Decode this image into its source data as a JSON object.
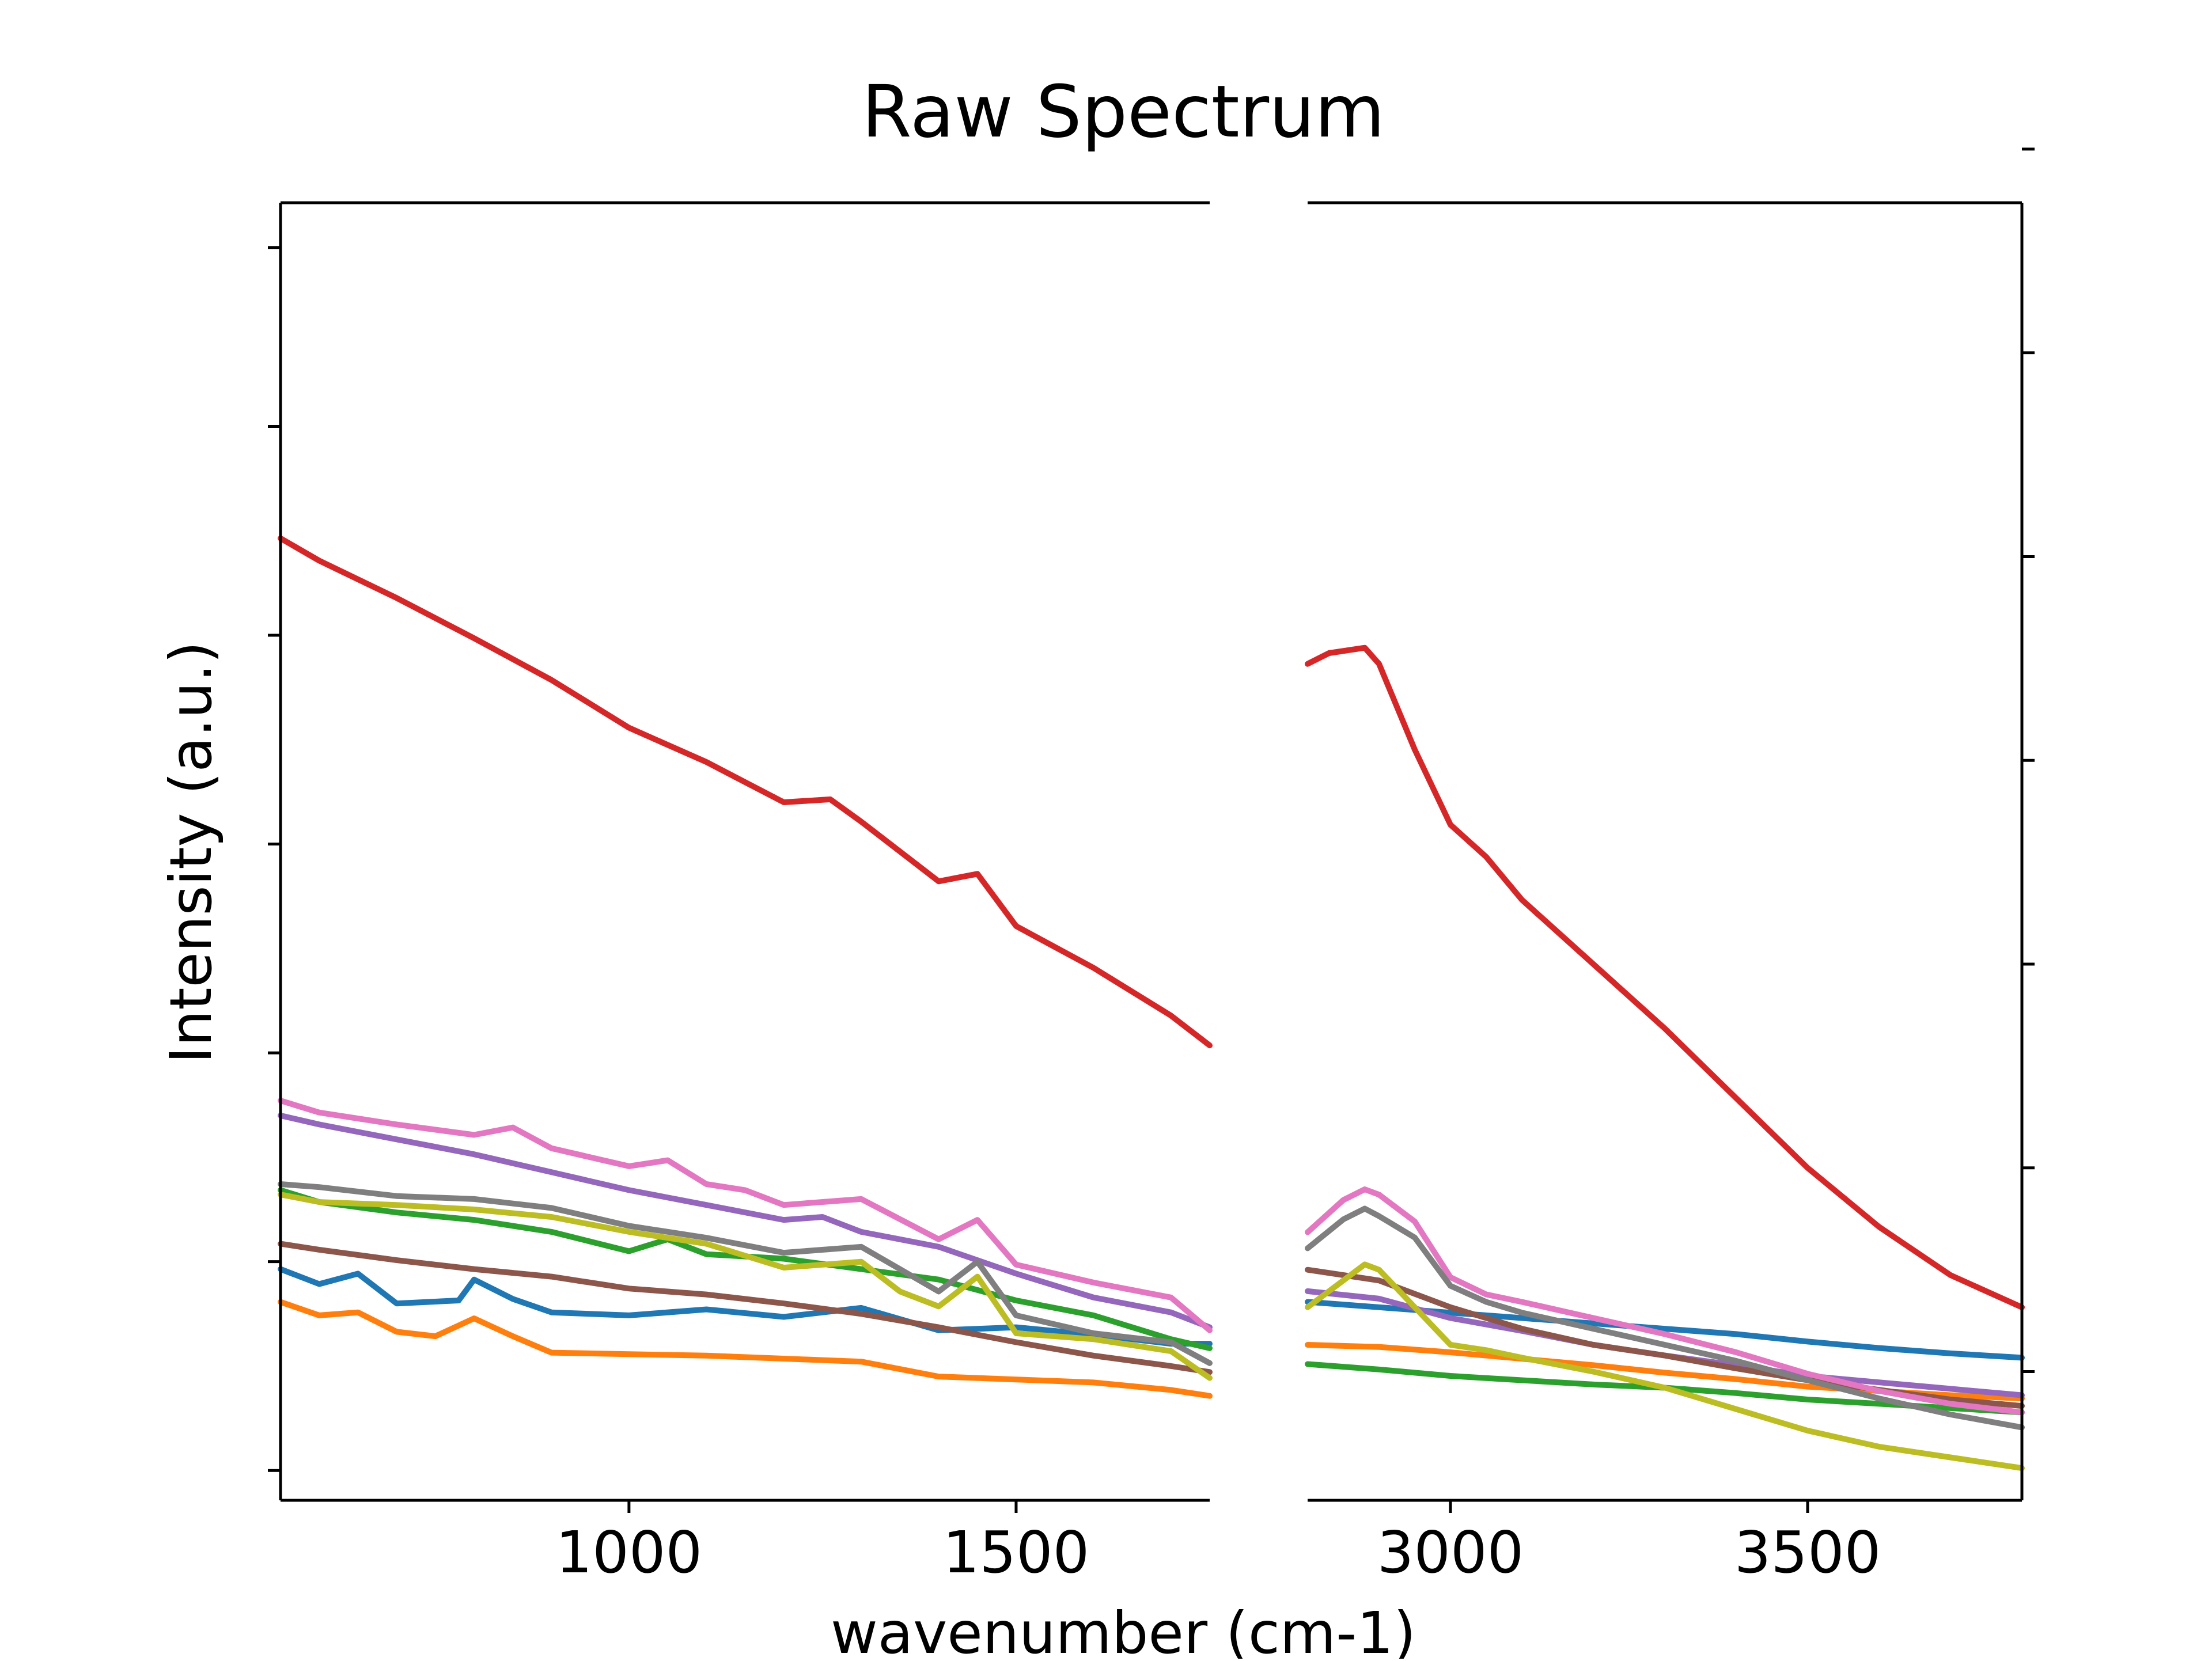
{
  "chart_data": {
    "type": "line",
    "title": "Raw Spectrum",
    "xlabel": "wavenumber (cm-1)",
    "ylabel": "Intensity (a.u.)",
    "grid": false,
    "legend": "none",
    "y_tick_labels_shown": false,
    "panels": [
      {
        "xlim": [
          550,
          1750
        ],
        "xticks": [
          1000,
          1500
        ],
        "ylim": [
          0,
          0.87
        ],
        "yticks": [
          0.02,
          0.16,
          0.3,
          0.44,
          0.58,
          0.72,
          0.84
        ]
      },
      {
        "xlim": [
          2800,
          3800
        ],
        "xticks": [
          3000,
          3500
        ],
        "ylim": [
          0,
          1.21
        ],
        "yticks": [
          0.12,
          0.31,
          0.5,
          0.69,
          0.88,
          1.07,
          1.26
        ]
      }
    ],
    "series": [
      {
        "color": "#1f77b4",
        "x": [
          550,
          600,
          650,
          700,
          780,
          800,
          850,
          900,
          1000,
          1100,
          1200,
          1300,
          1400,
          1500,
          1600,
          1700,
          1750
        ],
        "y": [
          0.155,
          0.145,
          0.152,
          0.132,
          0.134,
          0.148,
          0.135,
          0.126,
          0.124,
          0.128,
          0.123,
          0.129,
          0.114,
          0.116,
          0.111,
          0.105,
          0.105
        ],
        "x2": [
          2800,
          2900,
          3000,
          3100,
          3200,
          3300,
          3400,
          3500,
          3600,
          3700,
          3800
        ],
        "y2": [
          0.185,
          0.18,
          0.175,
          0.17,
          0.165,
          0.16,
          0.155,
          0.148,
          0.142,
          0.137,
          0.133
        ]
      },
      {
        "color": "#ff7f0e",
        "x": [
          550,
          600,
          650,
          700,
          750,
          800,
          850,
          900,
          1000,
          1100,
          1200,
          1300,
          1400,
          1500,
          1600,
          1700,
          1750
        ],
        "y": [
          0.133,
          0.124,
          0.126,
          0.113,
          0.11,
          0.122,
          0.11,
          0.099,
          0.098,
          0.097,
          0.095,
          0.093,
          0.083,
          0.081,
          0.079,
          0.074,
          0.07
        ],
        "x2": [
          2800,
          2900,
          3000,
          3100,
          3200,
          3300,
          3400,
          3500,
          3600,
          3700,
          3800
        ],
        "y2": [
          0.145,
          0.143,
          0.138,
          0.132,
          0.126,
          0.119,
          0.113,
          0.106,
          0.102,
          0.098,
          0.095
        ]
      },
      {
        "color": "#2ca02c",
        "x": [
          550,
          600,
          700,
          800,
          900,
          1000,
          1050,
          1100,
          1200,
          1300,
          1400,
          1500,
          1600,
          1700,
          1750
        ],
        "y": [
          0.208,
          0.2,
          0.193,
          0.188,
          0.18,
          0.167,
          0.175,
          0.165,
          0.162,
          0.155,
          0.148,
          0.134,
          0.124,
          0.108,
          0.102
        ],
        "x2": [
          2800,
          2900,
          3000,
          3100,
          3200,
          3300,
          3400,
          3500,
          3600,
          3700,
          3800
        ],
        "y2": [
          0.127,
          0.122,
          0.116,
          0.112,
          0.108,
          0.105,
          0.1,
          0.094,
          0.09,
          0.086,
          0.082
        ]
      },
      {
        "color": "#d62728",
        "x": [
          550,
          600,
          700,
          800,
          900,
          1000,
          1100,
          1200,
          1260,
          1300,
          1400,
          1450,
          1500,
          1600,
          1700,
          1750
        ],
        "y": [
          0.645,
          0.63,
          0.605,
          0.578,
          0.55,
          0.518,
          0.495,
          0.468,
          0.47,
          0.455,
          0.415,
          0.42,
          0.385,
          0.357,
          0.325,
          0.305
        ],
        "x2": [
          2800,
          2830,
          2880,
          2900,
          2950,
          3000,
          3050,
          3100,
          3200,
          3300,
          3400,
          3500,
          3600,
          3700,
          3800
        ],
        "y2": [
          0.78,
          0.79,
          0.795,
          0.78,
          0.7,
          0.63,
          0.6,
          0.56,
          0.5,
          0.44,
          0.375,
          0.31,
          0.255,
          0.21,
          0.18
        ]
      },
      {
        "color": "#9467bd",
        "x": [
          550,
          600,
          700,
          800,
          900,
          1000,
          1100,
          1200,
          1250,
          1300,
          1400,
          1500,
          1600,
          1700,
          1750
        ],
        "y": [
          0.258,
          0.252,
          0.242,
          0.232,
          0.22,
          0.208,
          0.198,
          0.188,
          0.19,
          0.18,
          0.17,
          0.152,
          0.136,
          0.126,
          0.116
        ],
        "x2": [
          2800,
          2900,
          3000,
          3100,
          3200,
          3300,
          3400,
          3500,
          3600,
          3700,
          3800
        ],
        "y2": [
          0.195,
          0.188,
          0.17,
          0.158,
          0.145,
          0.135,
          0.126,
          0.116,
          0.11,
          0.104,
          0.098
        ]
      },
      {
        "color": "#8c564b",
        "x": [
          550,
          600,
          700,
          800,
          900,
          1000,
          1100,
          1200,
          1300,
          1400,
          1500,
          1600,
          1700,
          1750
        ],
        "y": [
          0.172,
          0.168,
          0.161,
          0.155,
          0.15,
          0.142,
          0.138,
          0.132,
          0.125,
          0.116,
          0.106,
          0.097,
          0.09,
          0.086
        ],
        "x2": [
          2800,
          2900,
          3000,
          3100,
          3200,
          3300,
          3400,
          3500,
          3600,
          3700,
          3800
        ],
        "y2": [
          0.215,
          0.205,
          0.18,
          0.16,
          0.145,
          0.135,
          0.123,
          0.112,
          0.103,
          0.094,
          0.088
        ]
      },
      {
        "color": "#e377c2",
        "x": [
          550,
          600,
          700,
          800,
          850,
          900,
          1000,
          1050,
          1100,
          1150,
          1200,
          1300,
          1400,
          1450,
          1500,
          1600,
          1700,
          1750
        ],
        "y": [
          0.268,
          0.26,
          0.252,
          0.245,
          0.25,
          0.236,
          0.224,
          0.228,
          0.212,
          0.208,
          0.198,
          0.202,
          0.175,
          0.188,
          0.158,
          0.146,
          0.136,
          0.114
        ],
        "x2": [
          2800,
          2850,
          2880,
          2900,
          2950,
          3000,
          3050,
          3100,
          3200,
          3300,
          3400,
          3500,
          3600,
          3700,
          3800
        ],
        "y2": [
          0.25,
          0.28,
          0.29,
          0.285,
          0.26,
          0.208,
          0.192,
          0.185,
          0.17,
          0.155,
          0.138,
          0.118,
          0.102,
          0.09,
          0.082
        ]
      },
      {
        "color": "#7f7f7f",
        "x": [
          550,
          600,
          700,
          800,
          900,
          1000,
          1100,
          1200,
          1300,
          1350,
          1400,
          1450,
          1500,
          1600,
          1700,
          1750
        ],
        "y": [
          0.212,
          0.21,
          0.204,
          0.202,
          0.196,
          0.184,
          0.176,
          0.166,
          0.17,
          0.155,
          0.14,
          0.16,
          0.124,
          0.112,
          0.106,
          0.092
        ],
        "x2": [
          2800,
          2850,
          2880,
          2900,
          2950,
          3000,
          3050,
          3100,
          3200,
          3300,
          3400,
          3500,
          3600,
          3700,
          3800
        ],
        "y2": [
          0.235,
          0.262,
          0.272,
          0.265,
          0.245,
          0.2,
          0.185,
          0.175,
          0.16,
          0.145,
          0.13,
          0.112,
          0.095,
          0.08,
          0.068
        ]
      },
      {
        "color": "#bcbd22",
        "x": [
          550,
          600,
          700,
          800,
          900,
          1000,
          1100,
          1200,
          1300,
          1350,
          1400,
          1450,
          1500,
          1600,
          1700,
          1750
        ],
        "y": [
          0.205,
          0.2,
          0.198,
          0.195,
          0.19,
          0.18,
          0.172,
          0.156,
          0.16,
          0.14,
          0.13,
          0.15,
          0.112,
          0.108,
          0.1,
          0.082
        ],
        "x2": [
          2800,
          2850,
          2880,
          2900,
          2950,
          3000,
          3050,
          3100,
          3200,
          3300,
          3400,
          3500,
          3600,
          3700,
          3800
        ],
        "y2": [
          0.18,
          0.205,
          0.22,
          0.215,
          0.18,
          0.145,
          0.14,
          0.133,
          0.12,
          0.105,
          0.085,
          0.065,
          0.05,
          0.04,
          0.03
        ]
      }
    ]
  }
}
